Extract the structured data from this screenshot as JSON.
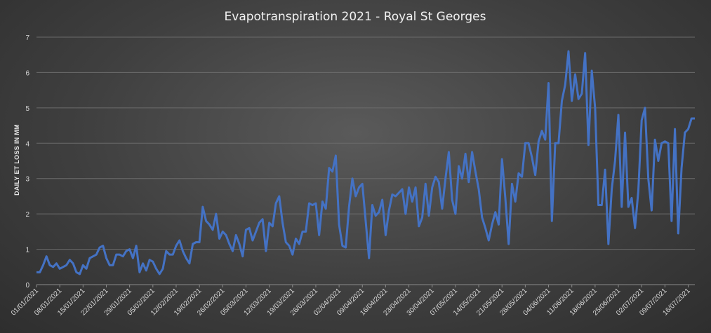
{
  "chart_data": {
    "type": "line",
    "title": "Evapotranspiration  2021 - Royal St Georges",
    "xlabel": "",
    "ylabel": "DAILY ET LOSS IN MM",
    "ylim": [
      0,
      7
    ],
    "yticks": [
      0,
      1,
      2,
      3,
      4,
      5,
      6,
      7
    ],
    "grid": true,
    "legend": "none",
    "line_color": "#4472C4",
    "x_start": "01/01/2021",
    "x_tick_labels": [
      "01/01/2021",
      "08/01/2021",
      "15/01/2021",
      "22/01/2021",
      "29/01/2021",
      "05/02/2021",
      "12/02/2021",
      "19/02/2021",
      "26/02/2021",
      "05/03/2021",
      "12/03/2021",
      "19/03/2021",
      "26/03/2021",
      "02/04/2021",
      "09/04/2021",
      "16/04/2021",
      "23/04/2021",
      "30/04/2021",
      "07/05/2021",
      "14/05/2021",
      "21/05/2021",
      "28/05/2021",
      "04/06/2021",
      "11/06/2021",
      "18/06/2021",
      "25/06/2021",
      "02/07/2021",
      "09/07/2021",
      "16/07/2021"
    ],
    "series": [
      {
        "values": [
          0.35,
          0.35,
          0.55,
          0.8,
          0.55,
          0.5,
          0.6,
          0.45,
          0.5,
          0.55,
          0.7,
          0.6,
          0.35,
          0.3,
          0.55,
          0.45,
          0.75,
          0.8,
          0.85,
          1.05,
          1.1,
          0.75,
          0.55,
          0.55,
          0.85,
          0.85,
          0.8,
          0.95,
          1.0,
          0.75,
          1.1,
          0.35,
          0.6,
          0.4,
          0.7,
          0.65,
          0.45,
          0.3,
          0.45,
          0.95,
          0.85,
          0.85,
          1.1,
          1.25,
          0.95,
          0.75,
          0.6,
          1.15,
          1.2,
          1.2,
          2.2,
          1.8,
          1.7,
          1.55,
          2.0,
          1.3,
          1.5,
          1.4,
          1.15,
          0.95,
          1.4,
          1.15,
          0.8,
          1.55,
          1.6,
          1.25,
          1.5,
          1.75,
          1.85,
          0.95,
          1.75,
          1.65,
          2.3,
          2.5,
          1.75,
          1.2,
          1.1,
          0.85,
          1.3,
          1.15,
          1.5,
          1.5,
          2.3,
          2.25,
          2.3,
          1.4,
          2.35,
          2.15,
          3.3,
          3.2,
          3.65,
          1.7,
          1.1,
          1.05,
          2.2,
          3.0,
          2.5,
          2.75,
          2.85,
          1.8,
          0.75,
          2.25,
          1.95,
          2.05,
          2.4,
          1.4,
          2.1,
          2.55,
          2.5,
          2.6,
          2.7,
          2.0,
          2.75,
          2.35,
          2.75,
          1.65,
          1.9,
          2.85,
          1.95,
          2.75,
          3.05,
          2.9,
          2.15,
          3.0,
          3.75,
          2.4,
          2.0,
          3.35,
          3.0,
          3.7,
          2.9,
          3.75,
          3.2,
          2.7,
          1.9,
          1.6,
          1.25,
          1.7,
          2.05,
          1.7,
          3.55,
          2.45,
          1.15,
          2.85,
          2.35,
          3.15,
          3.05,
          4.0,
          4.0,
          3.6,
          3.1,
          4.05,
          4.35,
          4.1,
          5.7,
          1.8,
          4.0,
          4.0,
          5.2,
          5.65,
          6.6,
          5.2,
          5.95,
          5.25,
          5.4,
          6.55,
          3.95,
          6.05,
          5.0,
          2.25,
          2.25,
          3.25,
          1.15,
          2.7,
          3.5,
          4.8,
          2.2,
          4.3,
          2.2,
          2.45,
          1.6,
          2.65,
          4.65,
          5.0,
          3.0,
          2.1,
          4.1,
          3.5,
          4.0,
          4.05,
          4.0,
          1.8,
          4.4,
          1.45,
          3.3,
          4.3,
          4.4,
          4.7,
          4.7
        ]
      }
    ]
  }
}
